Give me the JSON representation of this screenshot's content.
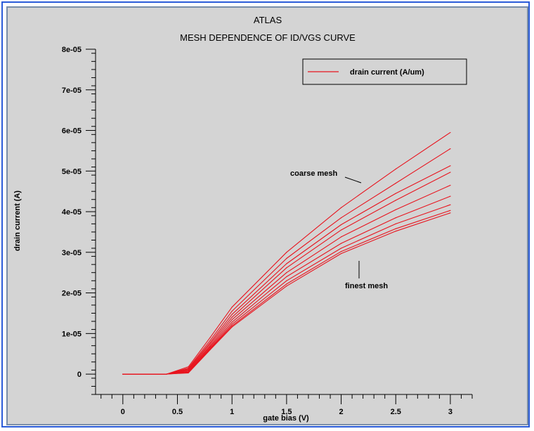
{
  "chart_data": {
    "type": "line",
    "title": "ATLAS",
    "subtitle": "MESH DEPENDENCE OF ID/VGS CURVE",
    "xlabel": "gate bias (V)",
    "ylabel": "drain current (A)",
    "xlim": [
      -0.25,
      3.2
    ],
    "ylim": [
      -5e-06,
      8e-05
    ],
    "x_ticks": [
      0,
      0.5,
      1,
      1.5,
      2,
      2.5,
      3
    ],
    "x_tick_labels": [
      "0",
      "0.5",
      "1",
      "1.5",
      "2",
      "2.5",
      "3"
    ],
    "y_ticks": [
      0,
      1e-05,
      2e-05,
      3e-05,
      4e-05,
      5e-05,
      6e-05,
      7e-05,
      8e-05
    ],
    "y_tick_labels": [
      "0",
      "1e-05",
      "2e-05",
      "3e-05",
      "4e-05",
      "5e-05",
      "6e-05",
      "7e-05",
      "8e-05"
    ],
    "legend": {
      "position": "top-right",
      "entries": [
        "drain current (A/um)"
      ]
    },
    "annotations": [
      "coarse mesh",
      "finest mesh"
    ],
    "grid": false,
    "line_color": "#e8141e",
    "x": [
      0,
      0.4,
      0.6,
      0.8,
      1.0,
      1.5,
      2.0,
      2.5,
      3.0
    ],
    "series": [
      {
        "values": [
          0,
          0,
          1.8e-06,
          9e-06,
          1.65e-05,
          3e-05,
          4.1e-05,
          5.05e-05,
          5.95e-05
        ]
      },
      {
        "values": [
          0,
          0,
          1.5e-06,
          8.3e-06,
          1.55e-05,
          2.85e-05,
          3.85e-05,
          4.7e-05,
          5.55e-05
        ]
      },
      {
        "values": [
          0,
          0,
          1.3e-06,
          7.8e-06,
          1.47e-05,
          2.72e-05,
          3.68e-05,
          4.45e-05,
          5.13e-05
        ]
      },
      {
        "values": [
          0,
          0,
          1.1e-06,
          7.4e-06,
          1.4e-05,
          2.62e-05,
          3.55e-05,
          4.28e-05,
          4.97e-05
        ]
      },
      {
        "values": [
          0,
          0,
          9e-07,
          7e-06,
          1.34e-05,
          2.5e-05,
          3.38e-05,
          4.05e-05,
          4.65e-05
        ]
      },
      {
        "values": [
          0,
          0,
          7e-07,
          6.7e-06,
          1.28e-05,
          2.4e-05,
          3.22e-05,
          3.85e-05,
          4.38e-05
        ]
      },
      {
        "values": [
          0,
          0,
          5e-07,
          6.4e-06,
          1.23e-05,
          2.3e-05,
          3.1e-05,
          3.7e-05,
          4.17e-05
        ]
      },
      {
        "values": [
          0,
          0,
          4e-07,
          6.2e-06,
          1.19e-05,
          2.22e-05,
          3.02e-05,
          3.58e-05,
          4.03e-05
        ]
      },
      {
        "values": [
          0,
          0,
          3e-07,
          6e-06,
          1.16e-05,
          2.17e-05,
          2.97e-05,
          3.52e-05,
          3.97e-05
        ]
      }
    ]
  }
}
